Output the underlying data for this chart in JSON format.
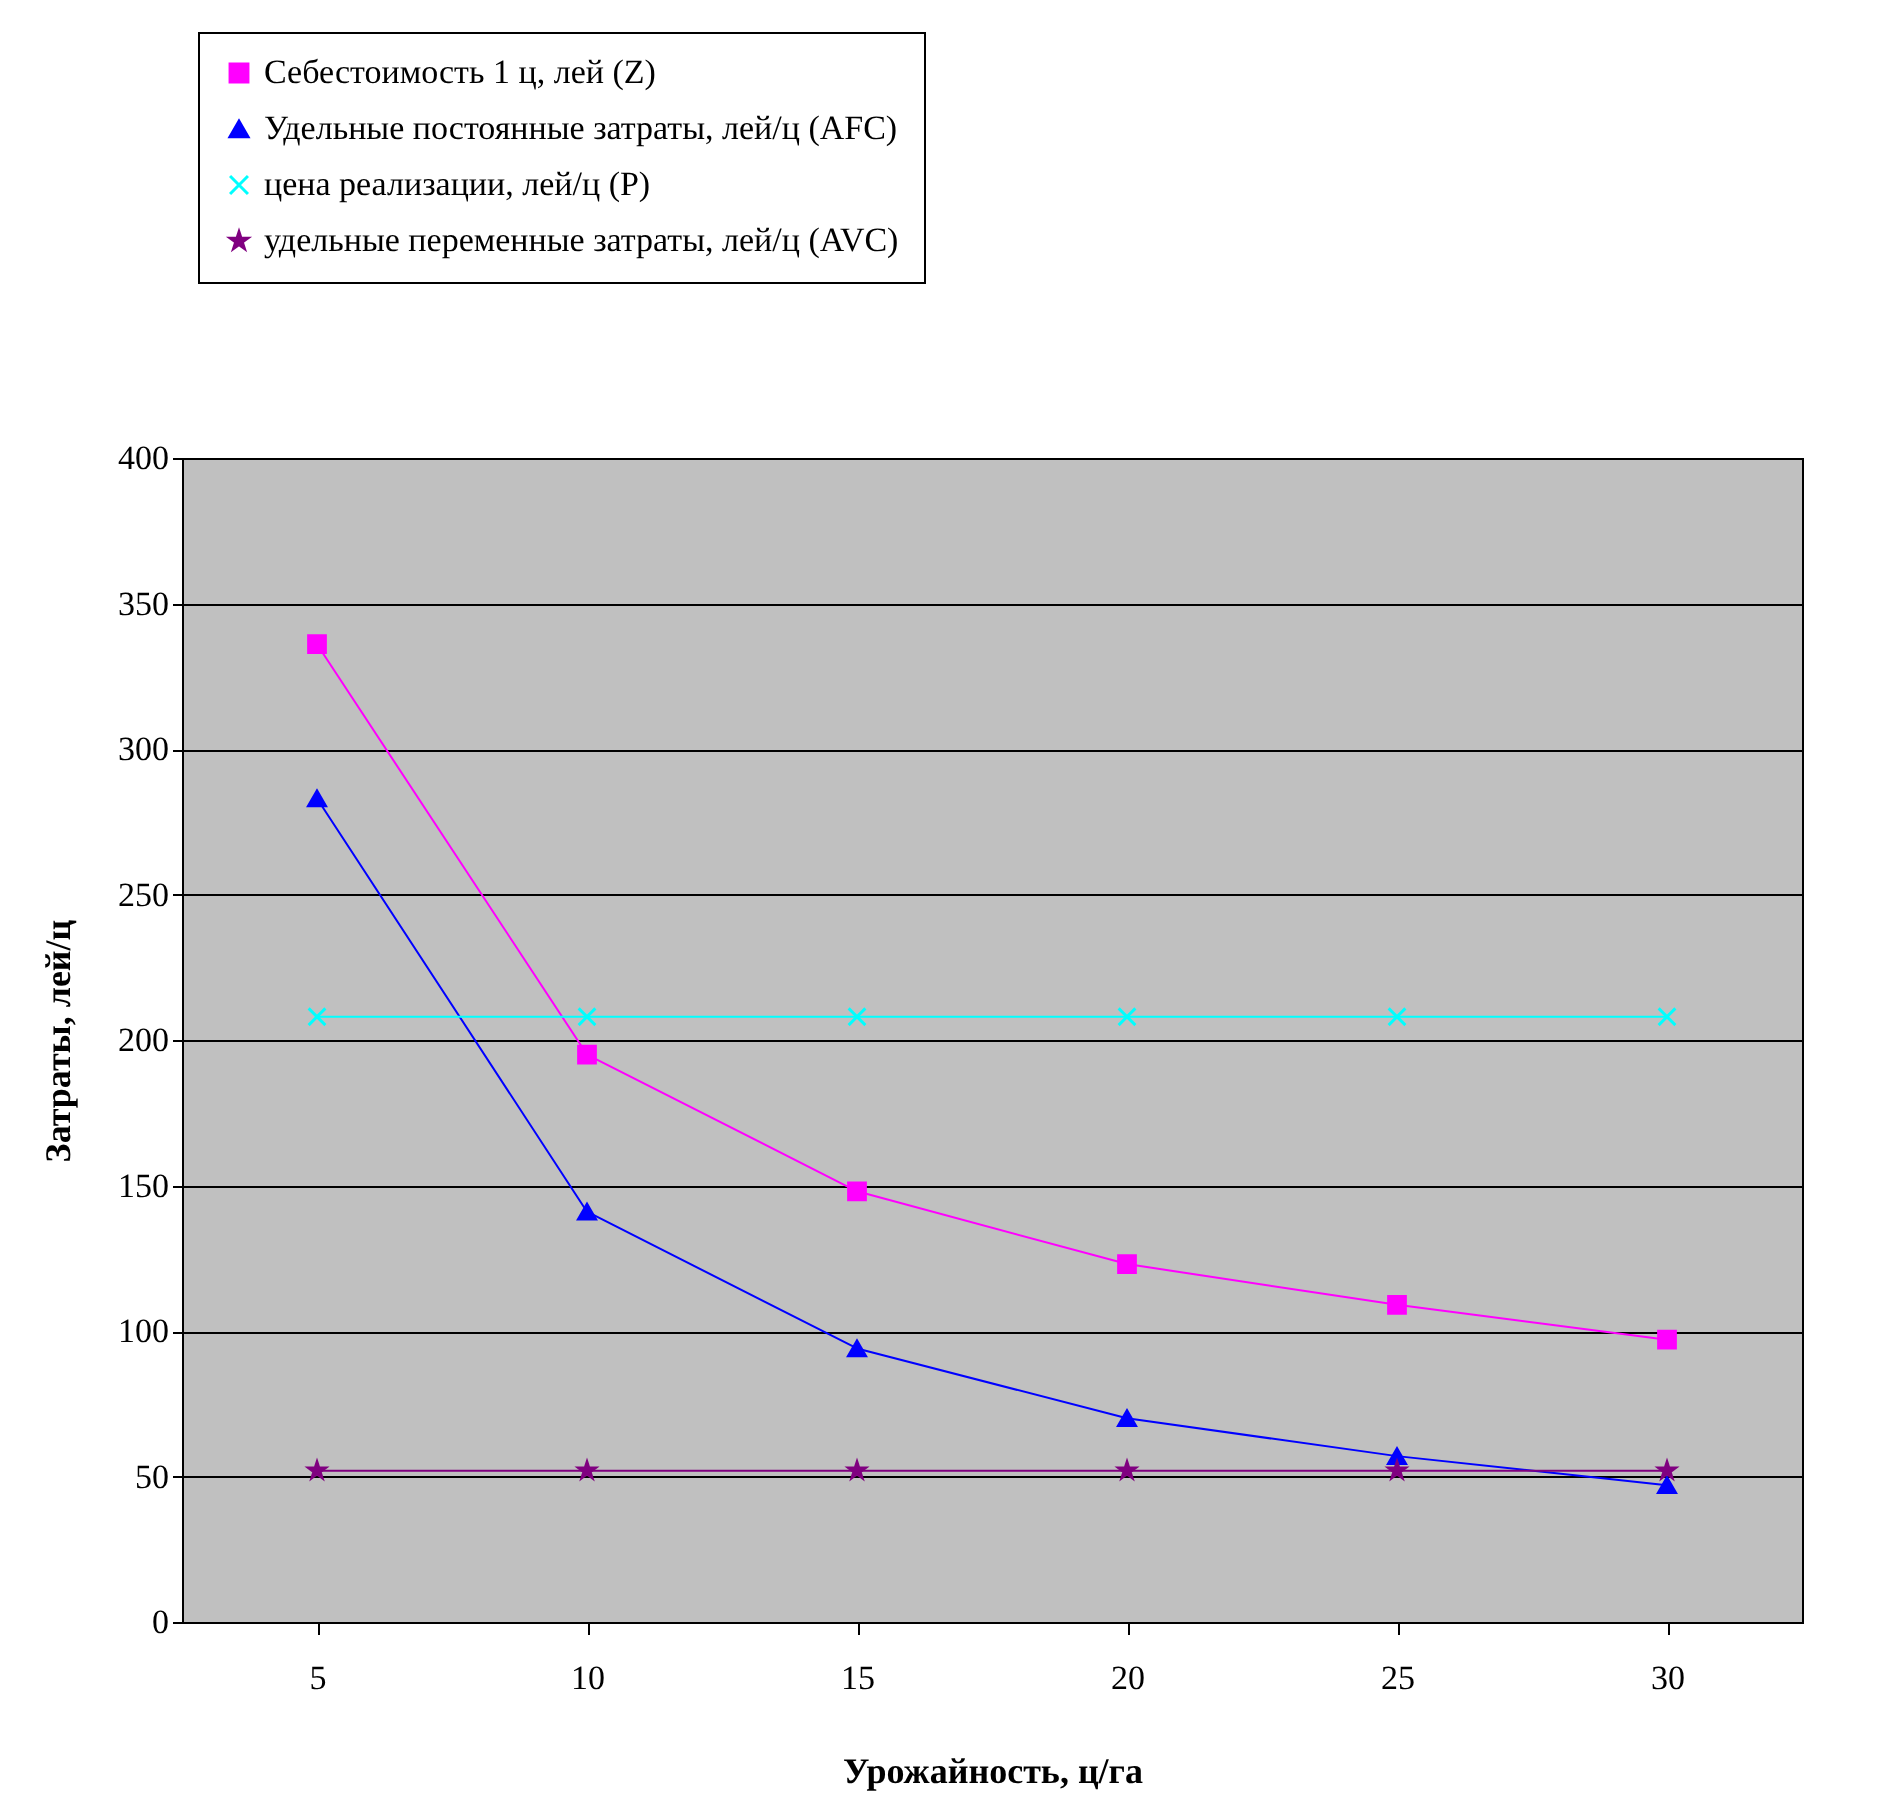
{
  "chart_data": {
    "type": "line",
    "xlabel": "Урожайность, ц/га",
    "ylabel": "Затраты, лей/ц",
    "categories": [
      "5",
      "10",
      "15",
      "20",
      "25",
      "30"
    ],
    "series": [
      {
        "name": "Себестоимость 1 ц, лей (Z)",
        "color": "#ff00ff",
        "marker": "square",
        "values": [
          336,
          195,
          148,
          123,
          109,
          97
        ]
      },
      {
        "name": "Удельные постоянные затраты, лей/ц (AFC)",
        "color": "#0000ff",
        "marker": "triangle",
        "values": [
          283,
          141,
          94,
          70,
          57,
          47
        ]
      },
      {
        "name": "цена реализации, лей/ц (P)",
        "color": "#00ffff",
        "marker": "cross",
        "values": [
          208,
          208,
          208,
          208,
          208,
          208
        ]
      },
      {
        "name": "удельные переменные затраты, лей/ц (AVC)",
        "color": "#800080",
        "marker": "star",
        "values": [
          52,
          52,
          52,
          52,
          52,
          52
        ]
      }
    ],
    "ylim": [
      0,
      400
    ],
    "yticks": [
      0,
      50,
      100,
      150,
      200,
      250,
      300,
      350,
      400
    ],
    "grid": "y",
    "legend": "top"
  }
}
